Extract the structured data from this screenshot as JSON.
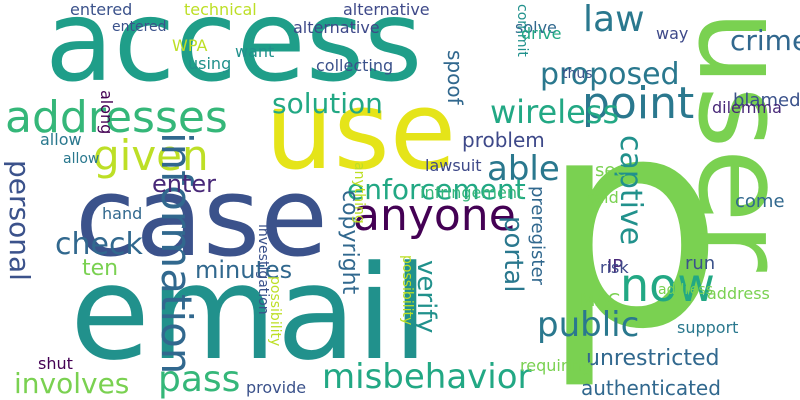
{
  "words": [
    {
      "text": "p",
      "color": "#7ad151",
      "vertical": false
    },
    {
      "text": "user",
      "color": "#7ad151",
      "vertical": true
    },
    {
      "text": "email",
      "color": "#21918c",
      "vertical": false
    },
    {
      "text": "access",
      "color": "#1f9e89",
      "vertical": false
    },
    {
      "text": "case",
      "color": "#3b528b",
      "vertical": false
    },
    {
      "text": "use",
      "color": "#e5e419",
      "vertical": false
    },
    {
      "text": "addresses",
      "color": "#35b779",
      "vertical": false
    },
    {
      "text": "now",
      "color": "#22a884",
      "vertical": false
    },
    {
      "text": "anyone",
      "color": "#440154",
      "vertical": false
    },
    {
      "text": "point",
      "color": "#2a788e",
      "vertical": false
    },
    {
      "text": "given",
      "color": "#bddf26",
      "vertical": false
    },
    {
      "text": "proposed",
      "color": "#2a788e",
      "vertical": false
    },
    {
      "text": "law",
      "color": "#2a788e",
      "vertical": false
    },
    {
      "text": "wireless",
      "color": "#22a884",
      "vertical": false
    },
    {
      "text": "able",
      "color": "#2a788e",
      "vertical": false
    },
    {
      "text": "information",
      "color": "#31688e",
      "vertical": true
    },
    {
      "text": "misbehavior",
      "color": "#22a884",
      "vertical": false
    },
    {
      "text": "pass",
      "color": "#35b779",
      "vertical": false
    },
    {
      "text": "public",
      "color": "#2a788e",
      "vertical": false
    },
    {
      "text": "solution",
      "color": "#22a884",
      "vertical": false
    },
    {
      "text": "enforcement",
      "color": "#22a884",
      "vertical": false
    },
    {
      "text": "involves",
      "color": "#7ad151",
      "vertical": false
    },
    {
      "text": "personal",
      "color": "#3b528b",
      "vertical": true
    },
    {
      "text": "check",
      "color": "#31688e",
      "vertical": false
    },
    {
      "text": "captive",
      "color": "#21918c",
      "vertical": true
    },
    {
      "text": "minutes",
      "color": "#31688e",
      "vertical": false
    },
    {
      "text": "crime",
      "color": "#31688e",
      "vertical": false
    },
    {
      "text": "enter",
      "color": "#482878",
      "vertical": false
    },
    {
      "text": "verify",
      "color": "#21918c",
      "vertical": true
    },
    {
      "text": "ten",
      "color": "#7ad151",
      "vertical": false
    },
    {
      "text": "portal",
      "color": "#2a788e",
      "vertical": true
    },
    {
      "text": "unrestricted",
      "color": "#31688e",
      "vertical": false
    },
    {
      "text": "authenticated",
      "color": "#31688e",
      "vertical": false
    },
    {
      "text": "spoof",
      "color": "#31688e",
      "vertical": true
    },
    {
      "text": "copyright",
      "color": "#31688e",
      "vertical": true
    },
    {
      "text": "see",
      "color": "#7ad151",
      "vertical": false
    },
    {
      "text": "come",
      "color": "#31688e",
      "vertical": false
    },
    {
      "text": "blamed",
      "color": "#3b528b",
      "vertical": false
    },
    {
      "text": "problem",
      "color": "#3e4989",
      "vertical": false
    },
    {
      "text": "IP",
      "color": "#482878",
      "vertical": false
    },
    {
      "text": "run",
      "color": "#3b528b",
      "vertical": false
    },
    {
      "text": "infringement",
      "color": "#35b779",
      "vertical": false
    },
    {
      "text": "preregister",
      "color": "#31688e",
      "vertical": true
    },
    {
      "text": "MAC",
      "color": "#7ad151",
      "vertical": false
    },
    {
      "text": "solve",
      "color": "#31688e",
      "vertical": false
    },
    {
      "text": "alternative",
      "color": "#3e4989",
      "vertical": false
    },
    {
      "text": "technical",
      "color": "#bddf26",
      "vertical": false
    },
    {
      "text": "entered",
      "color": "#3b528b",
      "vertical": false
    },
    {
      "text": "WPA",
      "color": "#bddf26",
      "vertical": false
    },
    {
      "text": "want",
      "color": "#21918c",
      "vertical": false
    },
    {
      "text": "using",
      "color": "#21918c",
      "vertical": false
    },
    {
      "text": "collecting",
      "color": "#3b528b",
      "vertical": false
    },
    {
      "text": "commit",
      "color": "#21918c",
      "vertical": true
    },
    {
      "text": "drive",
      "color": "#22a884",
      "vertical": false
    },
    {
      "text": "way",
      "color": "#3e4989",
      "vertical": false
    },
    {
      "text": "thus",
      "color": "#3b528b",
      "vertical": false
    },
    {
      "text": "along",
      "color": "#440154",
      "vertical": true
    },
    {
      "text": "allow",
      "color": "#2a788e",
      "vertical": false
    },
    {
      "text": "dilemma",
      "color": "#482878",
      "vertical": false
    },
    {
      "text": "lawsuit",
      "color": "#3e4989",
      "vertical": false
    },
    {
      "text": "said",
      "color": "#7ad151",
      "vertical": false
    },
    {
      "text": "hand",
      "color": "#31688e",
      "vertical": false
    },
    {
      "text": "risk",
      "color": "#3e4989",
      "vertical": false
    },
    {
      "text": "address",
      "color": "#7ad151",
      "vertical": false
    },
    {
      "text": "support",
      "color": "#2a788e",
      "vertical": false
    },
    {
      "text": "shut",
      "color": "#440154",
      "vertical": false
    },
    {
      "text": "provide",
      "color": "#3b528b",
      "vertical": false
    },
    {
      "text": "requiring",
      "color": "#7ad151",
      "vertical": false
    },
    {
      "text": "possibility",
      "color": "#bddf26",
      "vertical": true
    },
    {
      "text": "investigation",
      "color": "#3b528b",
      "vertical": true
    },
    {
      "text": "anything",
      "color": "#bddf26",
      "vertical": true
    },
    {
      "text": "alternative",
      "color": "#3e4989",
      "vertical": false
    },
    {
      "text": "entered",
      "color": "#3b528b",
      "vertical": false
    },
    {
      "text": "allow",
      "color": "#2a788e",
      "vertical": false
    },
    {
      "text": "possibility",
      "color": "#bddf26",
      "vertical": true
    },
    {
      "text": "address",
      "color": "#7ad151",
      "vertical": false
    }
  ]
}
